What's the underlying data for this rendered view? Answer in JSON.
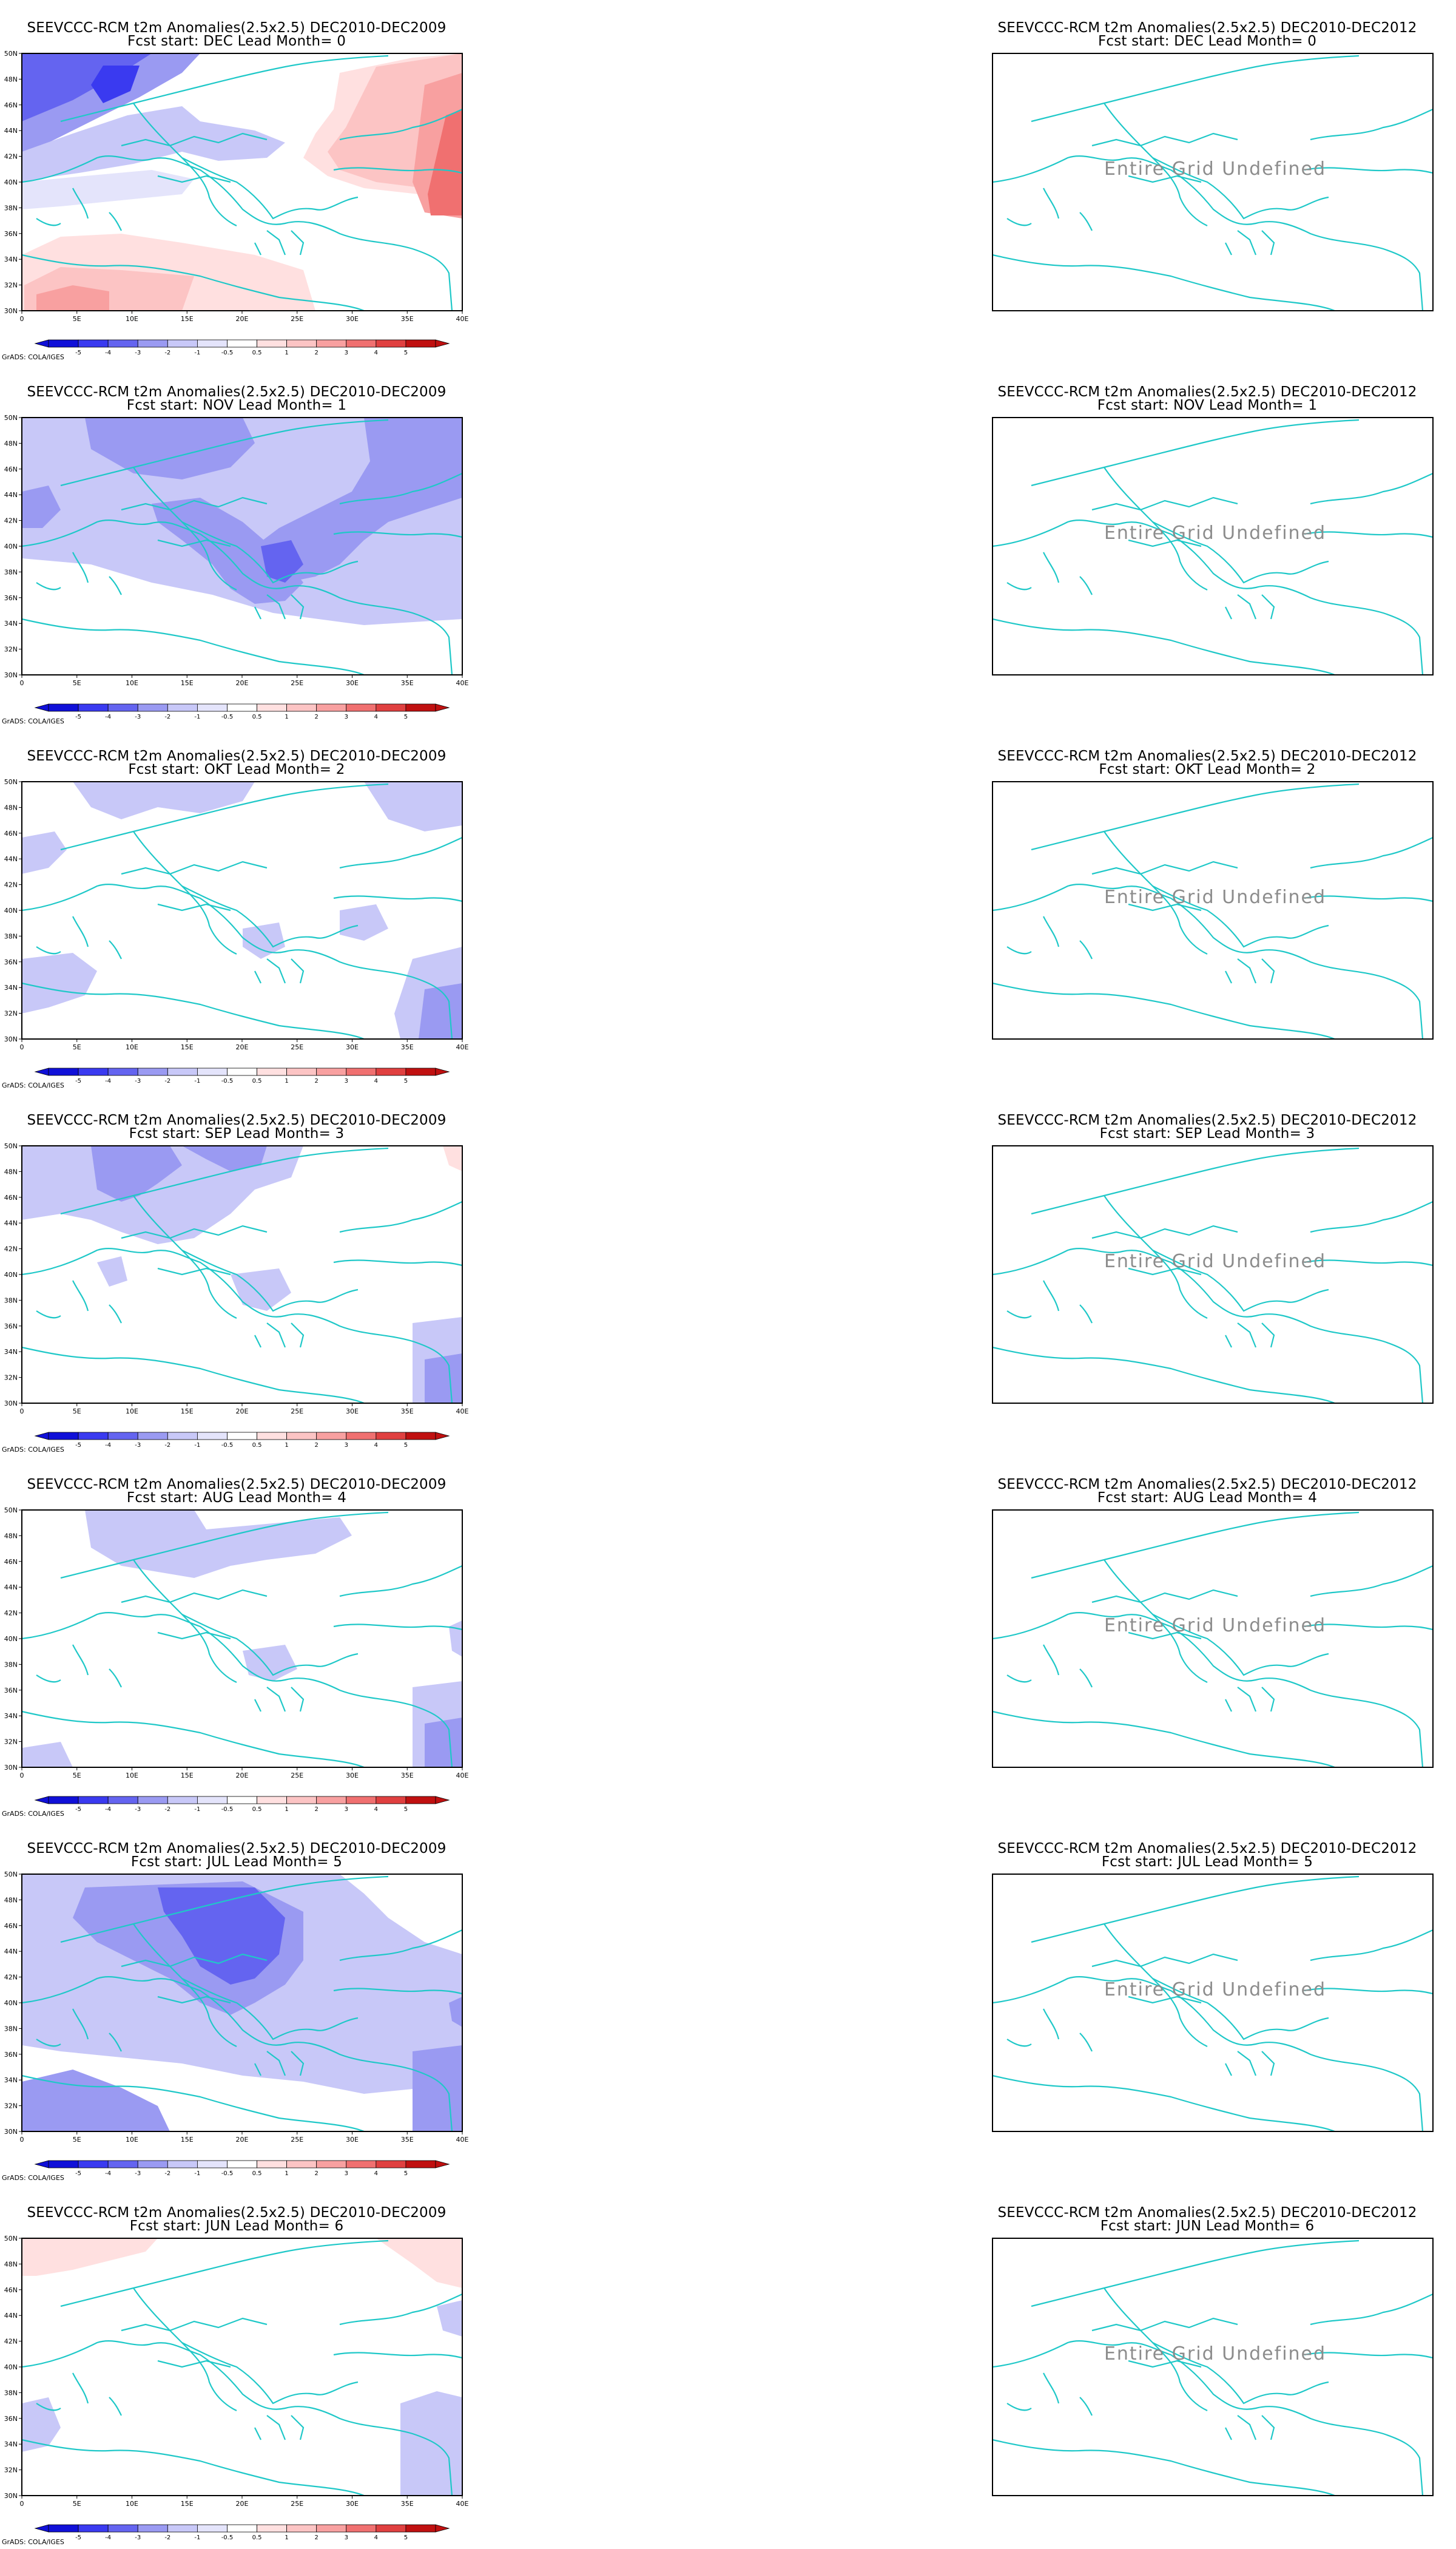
{
  "colors": {
    "coast": "#1fc8c8",
    "frame": "#000000",
    "undefined_text": "#8c8c8c",
    "scale": [
      "#1010d8",
      "#3a3af0",
      "#6464f0",
      "#9a9af2",
      "#c8c8f8",
      "#e4e4fb",
      "#ffffff",
      "#ffe0e0",
      "#fcc4c4",
      "#f8a0a0",
      "#f07070",
      "#e04040",
      "#c01010"
    ]
  },
  "colorbar": {
    "labels": [
      "-5",
      "-4",
      "-3",
      "-2",
      "-1",
      "-0.5",
      "0.5",
      "1",
      "2",
      "3",
      "4",
      "5"
    ]
  },
  "axes": {
    "x_ticks": [
      "0",
      "5E",
      "10E",
      "15E",
      "20E",
      "25E",
      "30E",
      "35E",
      "40E"
    ],
    "y_ticks": [
      "50N",
      "48N",
      "46N",
      "44N",
      "42N",
      "40N",
      "38N",
      "36N",
      "34N",
      "32N",
      "30N"
    ]
  },
  "credit": "GrADS: COLA/IGES",
  "undefined_label": "Entire Grid Undefined",
  "panels_left": [
    {
      "title": "SEEVCCC-RCM t2m Anomalies(2.5x2.5) DEC2010-DEC2009",
      "subtitle": "Fcst start: DEC  Lead Month= 0"
    },
    {
      "title": "SEEVCCC-RCM t2m Anomalies(2.5x2.5) DEC2010-DEC2009",
      "subtitle": "Fcst start: NOV  Lead Month= 1"
    },
    {
      "title": "SEEVCCC-RCM t2m Anomalies(2.5x2.5) DEC2010-DEC2009",
      "subtitle": "Fcst start: OKT  Lead Month= 2"
    },
    {
      "title": "SEEVCCC-RCM t2m Anomalies(2.5x2.5) DEC2010-DEC2009",
      "subtitle": "Fcst start: SEP  Lead Month= 3"
    },
    {
      "title": "SEEVCCC-RCM t2m Anomalies(2.5x2.5) DEC2010-DEC2009",
      "subtitle": "Fcst start: AUG  Lead Month= 4"
    },
    {
      "title": "SEEVCCC-RCM t2m Anomalies(2.5x2.5) DEC2010-DEC2009",
      "subtitle": "Fcst start: JUL  Lead Month= 5"
    },
    {
      "title": "SEEVCCC-RCM t2m Anomalies(2.5x2.5) DEC2010-DEC2009",
      "subtitle": "Fcst start: JUN  Lead Month= 6"
    }
  ],
  "panels_right": [
    {
      "title": "SEEVCCC-RCM t2m Anomalies(2.5x2.5) DEC2010-DEC2012",
      "subtitle": "Fcst start: DEC  Lead Month= 0"
    },
    {
      "title": "SEEVCCC-RCM t2m Anomalies(2.5x2.5) DEC2010-DEC2012",
      "subtitle": "Fcst start: NOV  Lead Month= 1"
    },
    {
      "title": "SEEVCCC-RCM t2m Anomalies(2.5x2.5) DEC2010-DEC2012",
      "subtitle": "Fcst start: OKT  Lead Month= 2"
    },
    {
      "title": "SEEVCCC-RCM t2m Anomalies(2.5x2.5) DEC2010-DEC2012",
      "subtitle": "Fcst start: SEP  Lead Month= 3"
    },
    {
      "title": "SEEVCCC-RCM t2m Anomalies(2.5x2.5) DEC2010-DEC2012",
      "subtitle": "Fcst start: AUG  Lead Month= 4"
    },
    {
      "title": "SEEVCCC-RCM t2m Anomalies(2.5x2.5) DEC2010-DEC2012",
      "subtitle": "Fcst start: JUL  Lead Month= 5"
    },
    {
      "title": "SEEVCCC-RCM t2m Anomalies(2.5x2.5) DEC2010-DEC2012",
      "subtitle": "Fcst start: JUN  Lead Month= 6"
    }
  ]
}
